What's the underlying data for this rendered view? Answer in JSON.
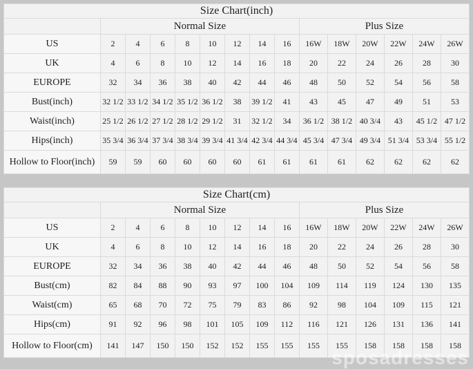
{
  "watermark": "sposadresses",
  "colors": {
    "page_background": "#c6c6c6",
    "table_background": "#f2f2f2",
    "grid_line": "#dadada",
    "text": "#1e1e1e"
  },
  "chart_data": [
    {
      "type": "table",
      "title": "Size Chart(inch)",
      "column_groups": [
        {
          "label": "Normal Size",
          "span": 8
        },
        {
          "label": "Plus Size",
          "span": 6
        }
      ],
      "rows": [
        {
          "label": "US",
          "values": [
            "2",
            "4",
            "6",
            "8",
            "10",
            "12",
            "14",
            "16",
            "16W",
            "18W",
            "20W",
            "22W",
            "24W",
            "26W"
          ]
        },
        {
          "label": "UK",
          "values": [
            "4",
            "6",
            "8",
            "10",
            "12",
            "14",
            "16",
            "18",
            "20",
            "22",
            "24",
            "26",
            "28",
            "30"
          ]
        },
        {
          "label": "EUROPE",
          "values": [
            "32",
            "34",
            "36",
            "38",
            "40",
            "42",
            "44",
            "46",
            "48",
            "50",
            "52",
            "54",
            "56",
            "58"
          ]
        },
        {
          "label": "Bust(inch)",
          "values": [
            "32 1/2",
            "33 1/2",
            "34 1/2",
            "35 1/2",
            "36 1/2",
            "38",
            "39 1/2",
            "41",
            "43",
            "45",
            "47",
            "49",
            "51",
            "53"
          ]
        },
        {
          "label": "Waist(inch)",
          "values": [
            "25 1/2",
            "26 1/2",
            "27 1/2",
            "28 1/2",
            "29 1/2",
            "31",
            "32 1/2",
            "34",
            "36 1/2",
            "38 1/2",
            "40 3/4",
            "43",
            "45 1/2",
            "47 1/2"
          ]
        },
        {
          "label": "Hips(inch)",
          "values": [
            "35 3/4",
            "36 3/4",
            "37 3/4",
            "38 3/4",
            "39 3/4",
            "41 3/4",
            "42 3/4",
            "44 3/4",
            "45 3/4",
            "47 3/4",
            "49 3/4",
            "51 3/4",
            "53 3/4",
            "55 1/2"
          ]
        },
        {
          "label": "Hollow to Floor(inch)",
          "values": [
            "59",
            "59",
            "60",
            "60",
            "60",
            "60",
            "61",
            "61",
            "61",
            "61",
            "62",
            "62",
            "62",
            "62"
          ]
        }
      ]
    },
    {
      "type": "table",
      "title": "Size Chart(cm)",
      "column_groups": [
        {
          "label": "Normal Size",
          "span": 8
        },
        {
          "label": "Plus Size",
          "span": 6
        }
      ],
      "rows": [
        {
          "label": "US",
          "values": [
            "2",
            "4",
            "6",
            "8",
            "10",
            "12",
            "14",
            "16",
            "16W",
            "18W",
            "20W",
            "22W",
            "24W",
            "26W"
          ]
        },
        {
          "label": "UK",
          "values": [
            "4",
            "6",
            "8",
            "10",
            "12",
            "14",
            "16",
            "18",
            "20",
            "22",
            "24",
            "26",
            "28",
            "30"
          ]
        },
        {
          "label": "EUROPE",
          "values": [
            "32",
            "34",
            "36",
            "38",
            "40",
            "42",
            "44",
            "46",
            "48",
            "50",
            "52",
            "54",
            "56",
            "58"
          ]
        },
        {
          "label": "Bust(cm)",
          "values": [
            "82",
            "84",
            "88",
            "90",
            "93",
            "97",
            "100",
            "104",
            "109",
            "114",
            "119",
            "124",
            "130",
            "135"
          ]
        },
        {
          "label": "Waist(cm)",
          "values": [
            "65",
            "68",
            "70",
            "72",
            "75",
            "79",
            "83",
            "86",
            "92",
            "98",
            "104",
            "109",
            "115",
            "121"
          ]
        },
        {
          "label": "Hips(cm)",
          "values": [
            "91",
            "92",
            "96",
            "98",
            "101",
            "105",
            "109",
            "112",
            "116",
            "121",
            "126",
            "131",
            "136",
            "141"
          ]
        },
        {
          "label": "Hollow to Floor(cm)",
          "values": [
            "141",
            "147",
            "150",
            "150",
            "152",
            "152",
            "155",
            "155",
            "155",
            "155",
            "158",
            "158",
            "158",
            "158"
          ]
        }
      ]
    }
  ]
}
